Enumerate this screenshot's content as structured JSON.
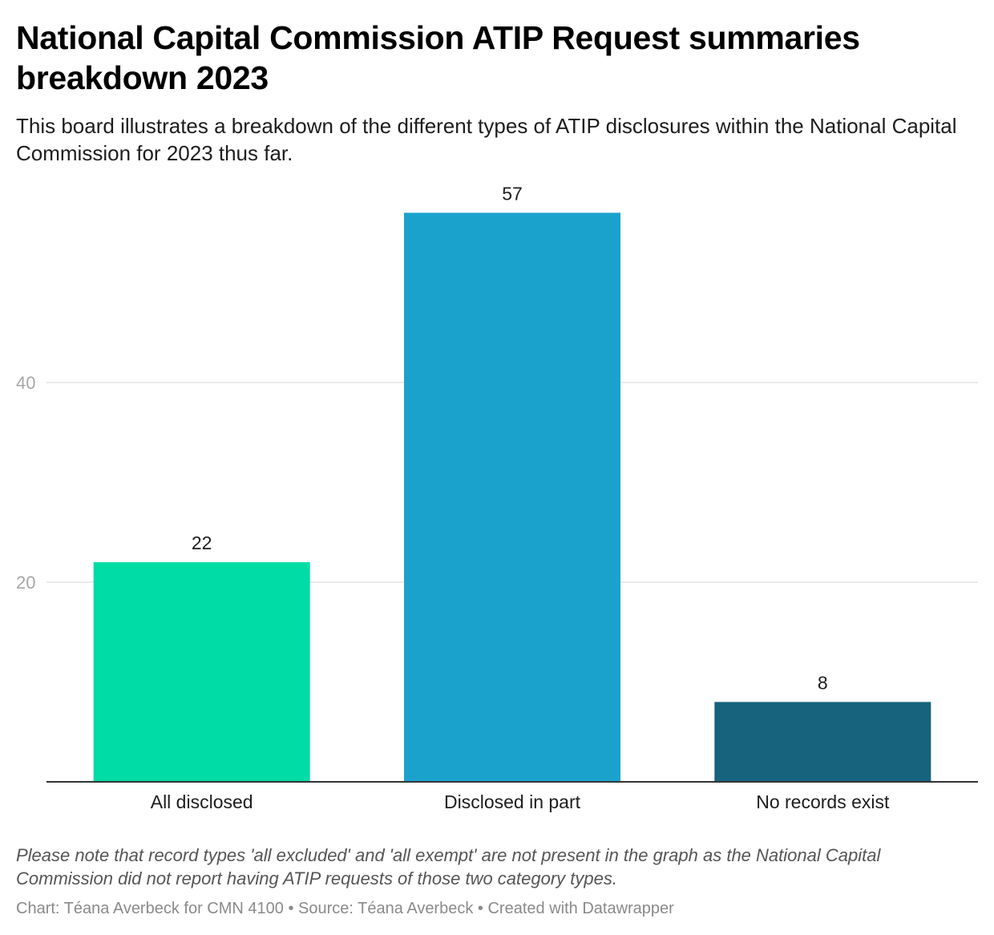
{
  "title": "National Capital Commission ATIP Request summaries breakdown 2023",
  "subtitle": "This board illustrates a breakdown of the different types of ATIP disclosures within the National Capital Commission for 2023 thus far.",
  "note": "Please note that record types 'all excluded' and 'all exempt' are not present in the graph as the National Capital Commission did not report having ATIP requests of those two category types.",
  "footer": {
    "chart_label": "Chart:",
    "chart_author": "Téana Averbeck for CMN 4100",
    "source_label": "Source:",
    "source": "Téana Averbeck",
    "created_with": "Created with Datawrapper",
    "separator": "•"
  },
  "chart_data": {
    "type": "bar",
    "title": "National Capital Commission ATIP Request summaries breakdown 2023",
    "subtitle": "This board illustrates a breakdown of the different types of ATIP disclosures within the National Capital Commission for 2023 thus far.",
    "categories": [
      "All disclosed",
      "Disclosed in part",
      "No records exist"
    ],
    "values": [
      22,
      57,
      8
    ],
    "colors": [
      "#00dca6",
      "#1aa2cd",
      "#17627d"
    ],
    "xlabel": "",
    "ylabel": "",
    "ylim": [
      0,
      57
    ],
    "yticks": [
      20,
      40
    ],
    "grid": true,
    "legend": "none",
    "data_labels": true
  },
  "colors": {
    "gridline": "#e3e3e3",
    "baseline": "#333333",
    "tick_text": "#a6a6a6",
    "category_text": "#1d1d1d",
    "value_text": "#1d1d1d"
  }
}
